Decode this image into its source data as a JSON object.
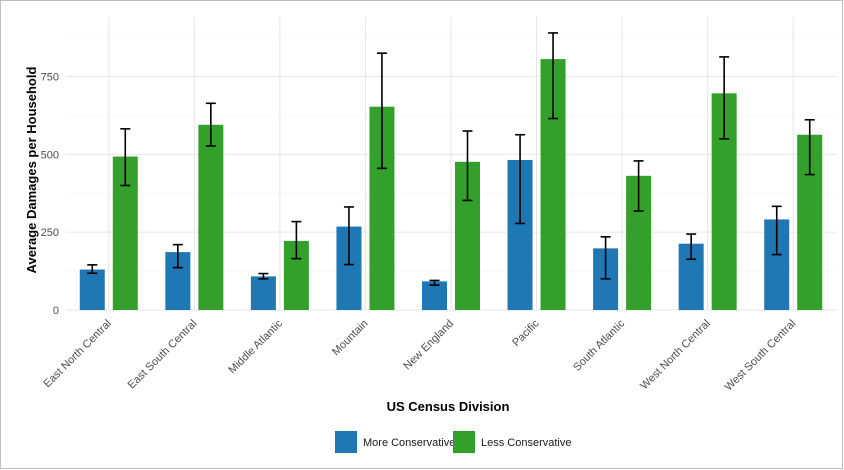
{
  "chart_data": {
    "type": "bar",
    "title": "",
    "xlabel": "US Census Division",
    "ylabel": "Average Damages per Household",
    "ylim": [
      0,
      900
    ],
    "yticks": [
      0,
      250,
      500,
      750
    ],
    "grid": true,
    "legend_position": "bottom",
    "categories": [
      "East North Central",
      "East South Central",
      "Middle Atlantic",
      "Mountain",
      "New England",
      "Pacific",
      "South Atlantic",
      "West North Central",
      "West South Central"
    ],
    "series": [
      {
        "name": "More Conservative",
        "color": "#1f77b4",
        "values": [
          130,
          186,
          108,
          268,
          92,
          482,
          198,
          213,
          291
        ],
        "err_low": [
          118,
          136,
          100,
          146,
          80,
          278,
          100,
          163,
          178
        ],
        "err_high": [
          145,
          210,
          117,
          331,
          95,
          563,
          235,
          244,
          333
        ]
      },
      {
        "name": "Less Conservative",
        "color": "#33a02c",
        "values": [
          493,
          595,
          222,
          653,
          476,
          806,
          431,
          696,
          563
        ],
        "err_low": [
          400,
          527,
          165,
          455,
          352,
          615,
          318,
          550,
          435
        ],
        "err_high": [
          582,
          664,
          284,
          825,
          575,
          890,
          479,
          813,
          611
        ]
      }
    ]
  }
}
